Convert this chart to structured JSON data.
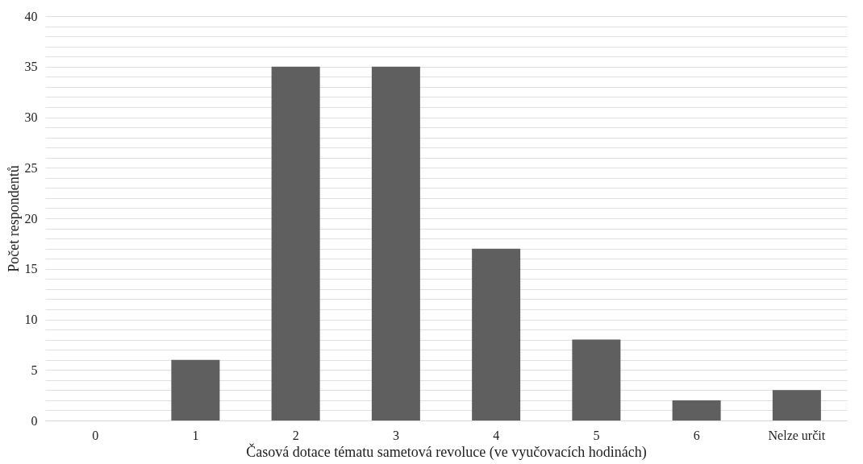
{
  "chart_data": {
    "type": "bar",
    "xlabel": "Časová dotace tématu sametová revoluce (ve vyučovacích hodinách)",
    "ylabel": "Počet respondentů",
    "categories": [
      "0",
      "1",
      "2",
      "3",
      "4",
      "5",
      "6",
      "Nelze určit"
    ],
    "values": [
      0,
      6,
      35,
      35,
      17,
      8,
      2,
      3
    ],
    "color": "#5f5f5f",
    "ylim": [
      0,
      40
    ],
    "yticks": [
      0,
      {
        "value": 1,
        "label": null
      },
      {
        "value": 2,
        "label": null
      },
      {
        "value": 3,
        "label": null
      },
      {
        "value": 4,
        "label": null
      },
      5,
      {
        "value": 6,
        "label": null
      },
      {
        "value": 7,
        "label": null
      },
      {
        "value": 8,
        "label": null
      },
      {
        "value": 9,
        "label": null
      },
      10,
      {
        "value": 11,
        "label": null
      },
      {
        "value": 12,
        "label": null
      },
      {
        "value": 13,
        "label": null
      },
      {
        "value": 14,
        "label": null
      },
      15,
      {
        "value": 16,
        "label": null
      },
      {
        "value": 17,
        "label": null
      },
      {
        "value": 18,
        "label": null
      },
      {
        "value": 19,
        "label": null
      },
      20,
      {
        "value": 21,
        "label": null
      },
      {
        "value": 22,
        "label": null
      },
      {
        "value": 23,
        "label": null
      },
      {
        "value": 24,
        "label": null
      },
      25,
      {
        "value": 26,
        "label": null
      },
      {
        "value": 27,
        "label": null
      },
      {
        "value": 28,
        "label": null
      },
      {
        "value": 29,
        "label": null
      },
      30,
      {
        "value": 31,
        "label": null
      },
      {
        "value": 32,
        "label": null
      },
      {
        "value": 33,
        "label": null
      },
      {
        "value": 34,
        "label": null
      },
      35,
      {
        "value": 36,
        "label": null
      },
      {
        "value": 37,
        "label": null
      },
      {
        "value": 38,
        "label": null
      },
      {
        "value": 39,
        "label": null
      },
      40
    ],
    "grid": "y"
  }
}
